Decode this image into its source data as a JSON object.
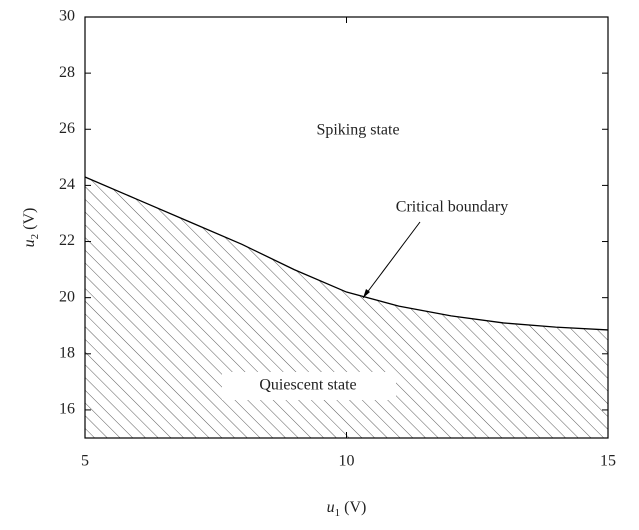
{
  "chart_data": {
    "type": "area",
    "x": [
      5,
      6,
      7,
      8,
      9,
      10,
      11,
      12,
      13,
      14,
      15
    ],
    "series": [
      {
        "color": "#000000",
        "values": [
          24.3,
          23.5,
          22.7,
          21.9,
          21.0,
          20.2,
          19.7,
          19.35,
          19.1,
          18.95,
          18.85
        ]
      }
    ],
    "xlim": [
      5,
      15
    ],
    "ylim": [
      15,
      30
    ],
    "xticks": [
      5,
      10,
      15
    ],
    "yticks": [
      16,
      18,
      20,
      22,
      24,
      26,
      28,
      30
    ],
    "xlabel": {
      "var": "u",
      "sub": "1",
      "unit": " (V)"
    },
    "ylabel": {
      "var": "u",
      "sub": "2",
      "unit": " (V)"
    },
    "annotations": [
      "Spiking state",
      "Critical boundary",
      "Quiescent state"
    ],
    "hatch": true
  }
}
